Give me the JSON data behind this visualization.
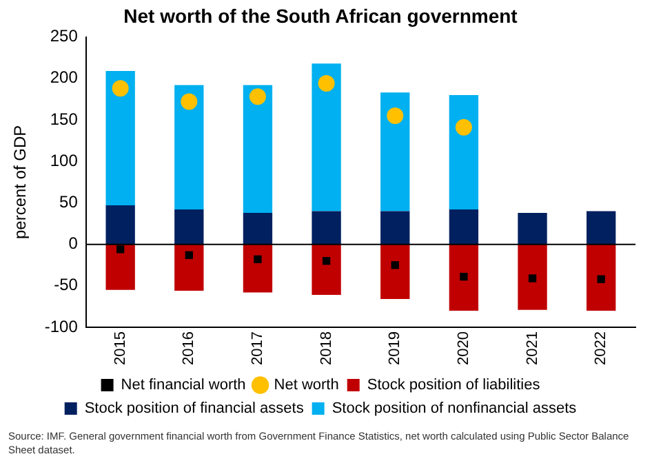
{
  "chart_data": {
    "type": "bar",
    "title": "Net worth of the South African government",
    "ylabel": "percent of GDP",
    "categories": [
      "2015",
      "2016",
      "2017",
      "2018",
      "2019",
      "2020",
      "2021",
      "2022"
    ],
    "stacked": true,
    "series": [
      {
        "name": "Stock position of liabilities",
        "color": "#c00000",
        "values": [
          -55,
          -56,
          -58,
          -61,
          -66,
          -80,
          -79,
          -80
        ]
      },
      {
        "name": "Stock position of financial assets",
        "color": "#002060",
        "values": [
          47,
          42,
          38,
          40,
          40,
          42,
          38,
          40
        ]
      },
      {
        "name": "Stock position of nonfinancial assets",
        "color": "#00b0f0",
        "values": [
          162,
          150,
          154,
          178,
          143,
          138,
          null,
          null
        ]
      },
      {
        "name": "Net financial worth",
        "type": "scatter",
        "marker": "square",
        "color": "#000000",
        "values": [
          -6,
          -13,
          -18,
          -20,
          -25,
          -39,
          -41,
          -42
        ]
      },
      {
        "name": "Net worth",
        "type": "scatter",
        "marker": "circle",
        "color": "#ffc000",
        "values": [
          188,
          172,
          178,
          194,
          155,
          141,
          null,
          null
        ]
      }
    ],
    "ylim": [
      -100,
      250
    ],
    "yticks": [
      -100,
      -50,
      0,
      50,
      100,
      150,
      200,
      250
    ],
    "grid": false,
    "legend": "bottom",
    "ref_lines": [
      {
        "axis": "y",
        "value": 0,
        "color": "#000000"
      }
    ],
    "annotations": [
      "Source: IMF. General government financial worth from Government Finance Statistics, net worth calculated using Public Sector Balance Sheet dataset."
    ]
  }
}
